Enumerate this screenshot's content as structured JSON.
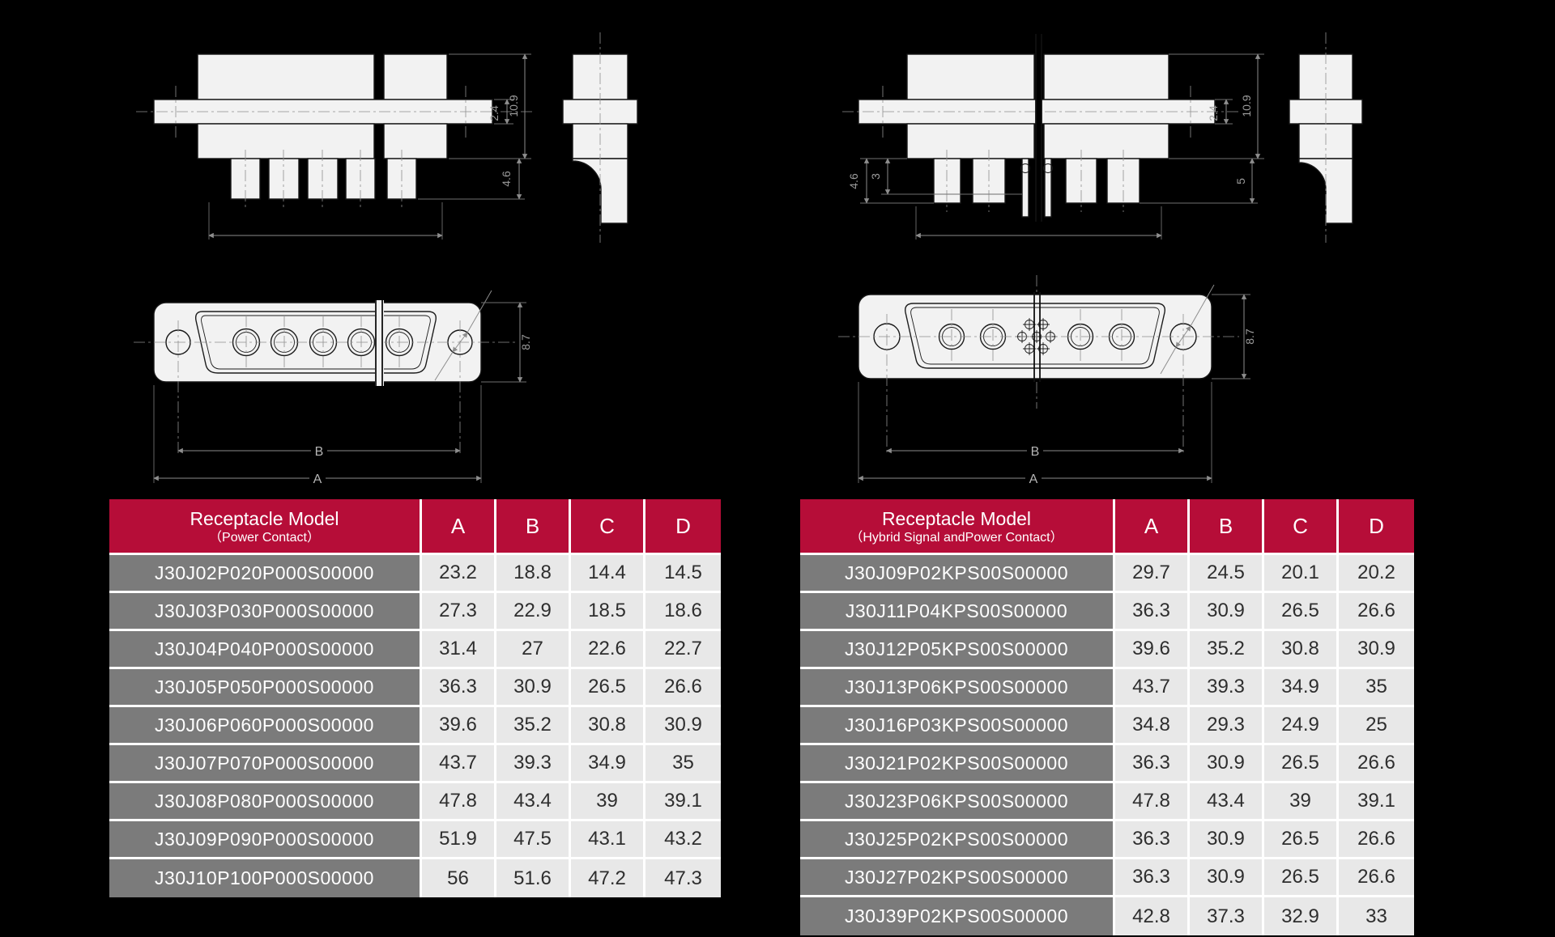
{
  "page": {
    "background": "#000000"
  },
  "colors": {
    "header_red": "#b60d38",
    "model_cell_gray": "#7b7b7b",
    "value_cell_gray": "#e8e8e8",
    "divider_white": "#ffffff",
    "value_text": "#2e2e2e",
    "drawing_shape": "#f2f2f2"
  },
  "drawings": {
    "left": {
      "labels": {
        "flange": "2.4",
        "height": "10.9",
        "pin": "4.6",
        "face": "8.7",
        "b": "B",
        "a": "A"
      }
    },
    "right": {
      "labels": {
        "flange": "2.4",
        "height": "10.9",
        "pin": "4.6",
        "mid": "3",
        "tail": "5",
        "face": "8.7",
        "b": "B",
        "a": "A"
      }
    }
  },
  "tables": {
    "left": {
      "title": "Receptacle Model",
      "subtitle": "（Power Contact）",
      "columns": [
        "A",
        "B",
        "C",
        "D"
      ],
      "rows": [
        [
          "J30J02P020P000S00000",
          "23.2",
          "18.8",
          "14.4",
          "14.5"
        ],
        [
          "J30J03P030P000S00000",
          "27.3",
          "22.9",
          "18.5",
          "18.6"
        ],
        [
          "J30J04P040P000S00000",
          "31.4",
          "27",
          "22.6",
          "22.7"
        ],
        [
          "J30J05P050P000S00000",
          "36.3",
          "30.9",
          "26.5",
          "26.6"
        ],
        [
          "J30J06P060P000S00000",
          "39.6",
          "35.2",
          "30.8",
          "30.9"
        ],
        [
          "J30J07P070P000S00000",
          "43.7",
          "39.3",
          "34.9",
          "35"
        ],
        [
          "J30J08P080P000S00000",
          "47.8",
          "43.4",
          "39",
          "39.1"
        ],
        [
          "J30J09P090P000S00000",
          "51.9",
          "47.5",
          "43.1",
          "43.2"
        ],
        [
          "J30J10P100P000S00000",
          "56",
          "51.6",
          "47.2",
          "47.3"
        ]
      ]
    },
    "right": {
      "title": "Receptacle Model",
      "subtitle": "（Hybrid Signal andPower Contact）",
      "columns": [
        "A",
        "B",
        "C",
        "D"
      ],
      "rows": [
        [
          "J30J09P02KPS00S00000",
          "29.7",
          "24.5",
          "20.1",
          "20.2"
        ],
        [
          "J30J11P04KPS00S00000",
          "36.3",
          "30.9",
          "26.5",
          "26.6"
        ],
        [
          "J30J12P05KPS00S00000",
          "39.6",
          "35.2",
          "30.8",
          "30.9"
        ],
        [
          "J30J13P06KPS00S00000",
          "43.7",
          "39.3",
          "34.9",
          "35"
        ],
        [
          "J30J16P03KPS00S00000",
          "34.8",
          "29.3",
          "24.9",
          "25"
        ],
        [
          "J30J21P02KPS00S00000",
          "36.3",
          "30.9",
          "26.5",
          "26.6"
        ],
        [
          "J30J23P06KPS00S00000",
          "47.8",
          "43.4",
          "39",
          "39.1"
        ],
        [
          "J30J25P02KPS00S00000",
          "36.3",
          "30.9",
          "26.5",
          "26.6"
        ],
        [
          "J30J27P02KPS00S00000",
          "36.3",
          "30.9",
          "26.5",
          "26.6"
        ],
        [
          "J30J39P02KPS00S00000",
          "42.8",
          "37.3",
          "32.9",
          "33"
        ]
      ]
    }
  }
}
